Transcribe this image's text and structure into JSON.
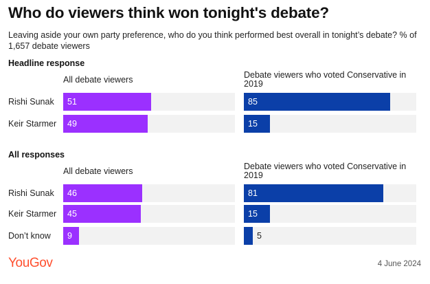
{
  "title": "Who do viewers think won tonight's debate?",
  "subtitle": "Leaving aside your own party preference, who do you think performed best overall in tonight’s debate? % of 1,657 debate viewers",
  "chart_data": [
    {
      "type": "bar",
      "section": "Headline response",
      "categories": [
        "Rishi Sunak",
        "Keir Starmer"
      ],
      "series": [
        {
          "name": "All debate viewers",
          "values": [
            51,
            49
          ],
          "color": "#9b30ff"
        },
        {
          "name": "Debate viewers who voted Conservative in 2019",
          "values": [
            85,
            15
          ],
          "color": "#0b3fa8"
        }
      ],
      "xlim": [
        0,
        100
      ],
      "units": "%"
    },
    {
      "type": "bar",
      "section": "All responses",
      "categories": [
        "Rishi Sunak",
        "Keir Starmer",
        "Don’t know"
      ],
      "series": [
        {
          "name": "All debate viewers",
          "values": [
            46,
            45,
            9
          ],
          "color": "#9b30ff"
        },
        {
          "name": "Debate viewers who voted Conservative in 2019",
          "values": [
            81,
            15,
            5
          ],
          "color": "#0b3fa8"
        }
      ],
      "xlim": [
        0,
        100
      ],
      "units": "%"
    }
  ],
  "footer": {
    "logo": "YouGov",
    "date": "4 June 2024"
  }
}
